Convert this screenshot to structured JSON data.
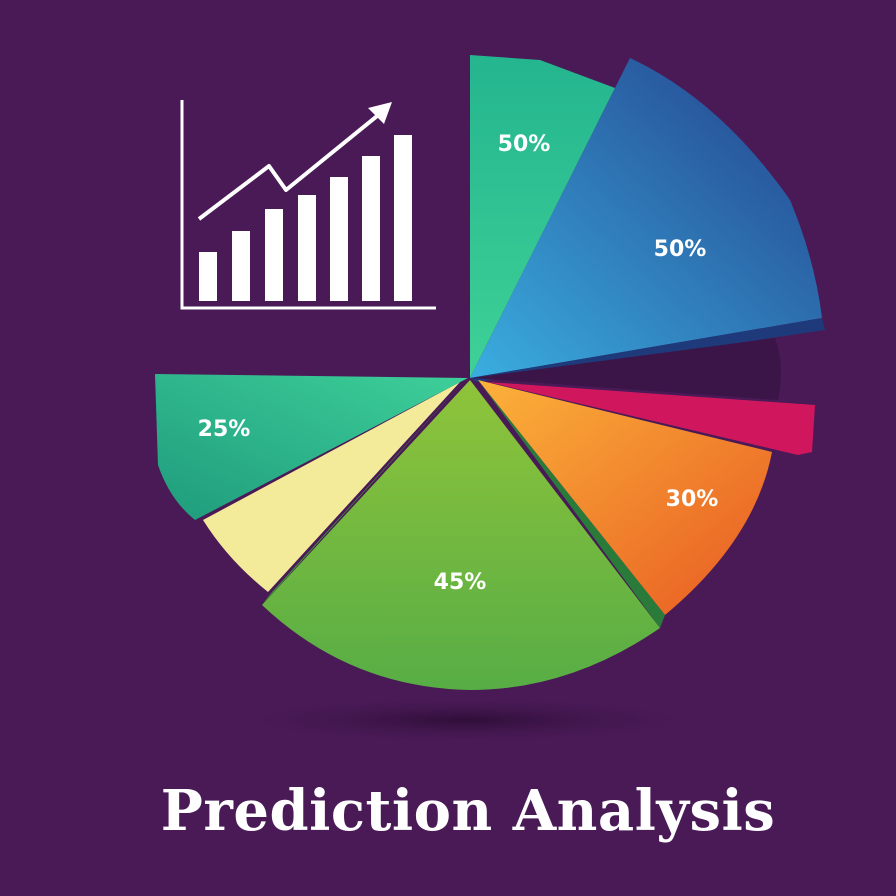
{
  "title": "Prediction Analysis",
  "chart_data": {
    "type": "pie",
    "slices": [
      {
        "label": "50%",
        "color": "#2fc08f"
      },
      {
        "label": "50%",
        "color": "#2f7fc9"
      },
      {
        "label": "",
        "color": "#3b1448"
      },
      {
        "label": "",
        "color": "#d0175e"
      },
      {
        "label": "30%",
        "color": "#f2732a"
      },
      {
        "label": "45%",
        "color": "#7dbd3c"
      },
      {
        "label": "",
        "color": "#f3eb9a"
      },
      {
        "label": "25%",
        "color": "#27a882"
      }
    ]
  }
}
